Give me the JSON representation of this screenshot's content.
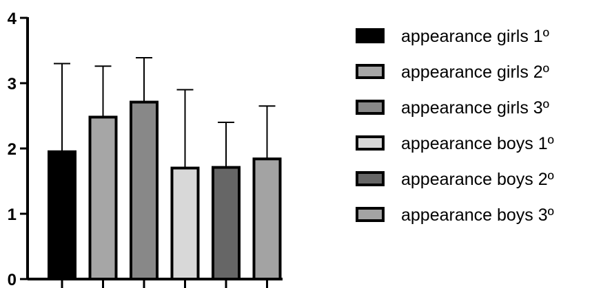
{
  "chart_data": {
    "type": "bar",
    "title": "",
    "xlabel": "",
    "ylabel": "",
    "ylim": [
      0,
      4
    ],
    "yticks": [
      "0",
      "1",
      "2",
      "3",
      "4"
    ],
    "grid": false,
    "legend_position": "right",
    "error_bars": true,
    "series": [
      {
        "name": "appearance girls 1º",
        "value": 1.95,
        "error": 1.35,
        "color": "#000000"
      },
      {
        "name": "appearance girls 2º",
        "value": 2.48,
        "error": 0.78,
        "color": "#a6a6a6"
      },
      {
        "name": "appearance girls 3º",
        "value": 2.71,
        "error": 0.68,
        "color": "#888888"
      },
      {
        "name": "appearance boys 1º",
        "value": 1.7,
        "error": 1.2,
        "color": "#d8d8d8"
      },
      {
        "name": "appearance boys 2º",
        "value": 1.71,
        "error": 0.69,
        "color": "#666666"
      },
      {
        "name": "appearance boys 3º",
        "value": 1.84,
        "error": 0.81,
        "color": "#a3a3a3"
      }
    ]
  }
}
